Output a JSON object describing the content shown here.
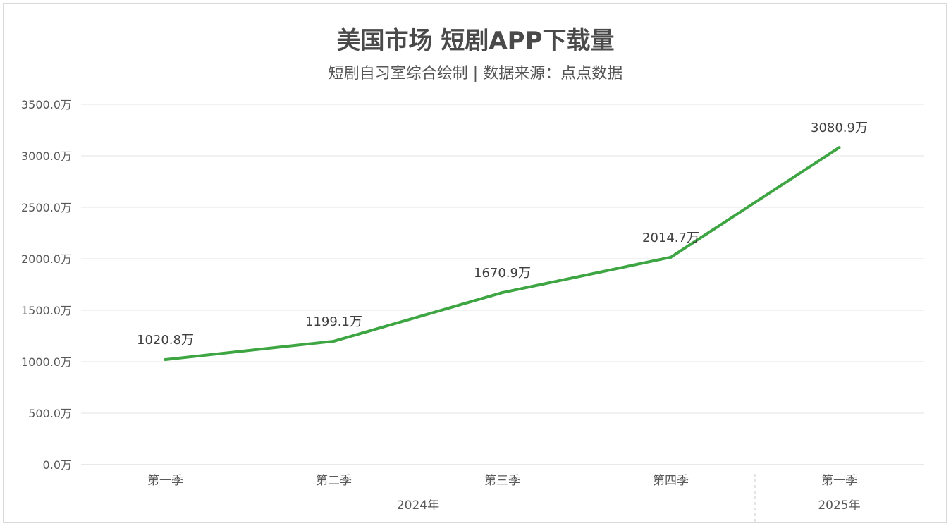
{
  "chart_data": {
    "type": "line",
    "title": "美国市场 短剧APP下载量",
    "subtitle": "短剧自习室综合绘制 | 数据来源：点点数据",
    "unit_suffix": "万",
    "categories": [
      "第一季",
      "第二季",
      "第三季",
      "第四季",
      "第一季"
    ],
    "category_groups": [
      {
        "label": "2024年",
        "span": 4
      },
      {
        "label": "2025年",
        "span": 1
      }
    ],
    "series": [
      {
        "values": [
          1020.8,
          1199.1,
          1670.9,
          2014.7,
          3080.9
        ],
        "color": "#3ea543"
      }
    ],
    "data_labels": [
      "1020.8万",
      "1199.1万",
      "1670.9万",
      "2014.7万",
      "3080.9万"
    ],
    "y_tick_labels": [
      "0.0万",
      "500.0万",
      "1000.0万",
      "1500.0万",
      "2000.0万",
      "2500.0万",
      "3000.0万",
      "3500.0万"
    ],
    "ylim": [
      0,
      3500
    ],
    "y_step": 500,
    "grid": true,
    "legend": "none"
  }
}
